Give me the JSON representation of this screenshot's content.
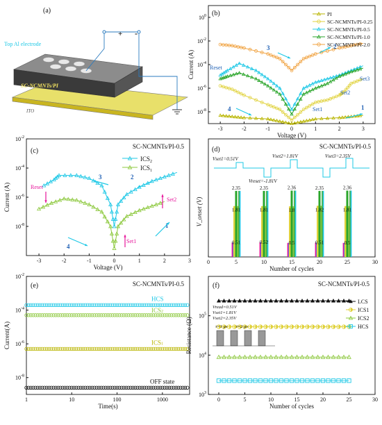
{
  "colors": {
    "cyan": "#1ec8e6",
    "lime": "#8cc83c",
    "yellow": "#e0d23c",
    "orange": "#f0a03c",
    "green": "#2aa52a",
    "olive": "#b9b500",
    "gray": "#8a8a8a",
    "magenta": "#e6149a",
    "blue": "#3c64e6",
    "red": "#e61e1e",
    "black": "#111111",
    "purple": "#8a2be2"
  },
  "panel_a": {
    "label": "(a)",
    "top_electrode": "Top Al electrode",
    "plus": "+",
    "minus": "-",
    "film": "SC-NCMNTs/PI",
    "substrate": "ITO"
  },
  "chart_data": [
    {
      "id": "b",
      "type": "line",
      "label": "(b)",
      "xlabel": "Voltage (V)",
      "ylabel": "Current (A)",
      "xlim": [
        -3.5,
        3.5
      ],
      "ylim_log": [
        -9,
        1
      ],
      "xticks": [
        "-3",
        "-2",
        "-1",
        "0",
        "1",
        "2",
        "3"
      ],
      "yticks": [
        "10^-8",
        "10^-6",
        "10^-4",
        "10^-2",
        "10^0"
      ],
      "legend": [
        "PI",
        "SC-NCMNTs/PI-0.25",
        "SC-NCMNTs/PI-0.5",
        "SC-NCMNTs/PI-1.0",
        "SC-NCMNTs/PI-2.0"
      ],
      "annotations": {
        "n1": "1",
        "n2": "2",
        "n3": "3",
        "n4": "4",
        "reset": "Reset",
        "set1": "Set1",
        "set2": "Set2",
        "set3": "Set3"
      },
      "series": [
        {
          "name": "PI",
          "color": "olive",
          "points": [
            [
              -3,
              -8.3
            ],
            [
              -2.5,
              -8.4
            ],
            [
              -2,
              -8.5
            ],
            [
              -1,
              -8.6
            ],
            [
              -0.5,
              -8.8
            ],
            [
              0,
              -9
            ],
            [
              0.5,
              -8.8
            ],
            [
              1,
              -8.6
            ],
            [
              2,
              -8.5
            ],
            [
              2.5,
              -8.4
            ],
            [
              3,
              -8.3
            ]
          ]
        },
        {
          "name": "SC-NCMNTs/PI-0.25",
          "color": "yellow",
          "points": [
            [
              -3,
              -5.8
            ],
            [
              -2.5,
              -6.1
            ],
            [
              -2,
              -6.6
            ],
            [
              -1,
              -7.4
            ],
            [
              -0.5,
              -7.8
            ],
            [
              0,
              -8.7
            ],
            [
              0.5,
              -7.8
            ],
            [
              1,
              -7.2
            ],
            [
              1.5,
              -7
            ],
            [
              2,
              -6.6
            ],
            [
              2.2,
              -6.3
            ],
            [
              2.5,
              -5.6
            ],
            [
              3,
              -5.2
            ]
          ]
        },
        {
          "name": "SC-NCMNTs/PI-0.5",
          "color": "cyan",
          "points": [
            [
              -3,
              -4.9
            ],
            [
              -2.7,
              -4.5
            ],
            [
              -2.2,
              -3.9
            ],
            [
              -1.5,
              -4.5
            ],
            [
              -1,
              -5.2
            ],
            [
              -0.5,
              -6
            ],
            [
              0,
              -7.8
            ],
            [
              0.5,
              -6
            ],
            [
              1,
              -5.5
            ],
            [
              1.5,
              -5.2
            ],
            [
              2,
              -4.9
            ],
            [
              2.5,
              -4.5
            ],
            [
              3,
              -4.1
            ]
          ]
        },
        {
          "name": "SC-NCMNTs/PI-1.0",
          "color": "green",
          "points": [
            [
              -3,
              -5.2
            ],
            [
              -2.7,
              -5
            ],
            [
              -2.2,
              -4.7
            ],
            [
              -1.5,
              -5.2
            ],
            [
              -1,
              -5.8
            ],
            [
              -0.5,
              -6.5
            ],
            [
              0,
              -8.2
            ],
            [
              0.5,
              -6.5
            ],
            [
              1,
              -6
            ],
            [
              1.5,
              -5.6
            ],
            [
              2,
              -5
            ],
            [
              2.5,
              -4.6
            ],
            [
              3,
              -4.3
            ]
          ]
        },
        {
          "name": "SC-NCMNTs/PI-2.0",
          "color": "orange",
          "points": [
            [
              -3,
              -2.3
            ],
            [
              -2.5,
              -2.4
            ],
            [
              -2,
              -2.6
            ],
            [
              -1,
              -3.1
            ],
            [
              -0.5,
              -3.5
            ],
            [
              0,
              -4.5
            ],
            [
              0.5,
              -3.5
            ],
            [
              1,
              -3.1
            ],
            [
              2,
              -2.6
            ],
            [
              2.5,
              -2.4
            ],
            [
              3,
              -2.2
            ]
          ]
        }
      ]
    },
    {
      "id": "c",
      "type": "line",
      "label": "(c)",
      "title": "SC-NCMNTs/PI-0.5",
      "xlabel": "Voltage (V)",
      "ylabel": "Current (A)",
      "xlim": [
        -3.5,
        3
      ],
      "ylim_log": [
        -10,
        -2
      ],
      "xticks": [
        "-3",
        "-2",
        "-1",
        "0",
        "1",
        "2",
        "3"
      ],
      "yticks": [
        "10^-8",
        "10^-6",
        "10^-4",
        "10^-2"
      ],
      "legend": [
        "ICS2",
        "ICS1"
      ],
      "annotations": {
        "n1": "1",
        "n2": "2",
        "n3": "3",
        "n4": "4",
        "reset": "Reset",
        "set1": "Set1",
        "set2": "Set2"
      },
      "series": [
        {
          "name": "ICS2",
          "color": "cyan",
          "points": [
            [
              -2.8,
              -5.2
            ],
            [
              -2.4,
              -4.8
            ],
            [
              -2.2,
              -4.5
            ],
            [
              -1.5,
              -4.5
            ],
            [
              -1,
              -4.7
            ],
            [
              -0.5,
              -5.2
            ],
            [
              -0.15,
              -6.5
            ],
            [
              0,
              -8
            ],
            [
              0.15,
              -6.5
            ],
            [
              0.5,
              -5.8
            ],
            [
              1,
              -5.3
            ],
            [
              1.5,
              -4.9
            ],
            [
              2,
              -4.6
            ],
            [
              2.5,
              -4.3
            ]
          ]
        },
        {
          "name": "ICS1",
          "color": "lime",
          "points": [
            [
              -3,
              -6.8
            ],
            [
              -2.5,
              -6.4
            ],
            [
              -2,
              -6.1
            ],
            [
              -1.5,
              -6.2
            ],
            [
              -1,
              -6.5
            ],
            [
              -0.5,
              -7
            ],
            [
              -0.15,
              -8
            ],
            [
              0,
              -9.5
            ],
            [
              0.15,
              -8
            ],
            [
              0.5,
              -7.3
            ],
            [
              1,
              -6.9
            ],
            [
              1.5,
              -6.6
            ],
            [
              2,
              -6.3
            ]
          ]
        }
      ]
    },
    {
      "id": "d",
      "type": "bar",
      "label": "(d)",
      "title": "SC-NCMNTs/PI-0.5",
      "xlabel": "Number of cycles",
      "ylabel": "V_onset (V)",
      "xlim": [
        0,
        30
      ],
      "xticks": [
        "0",
        "5",
        "10",
        "15",
        "20",
        "25",
        "30"
      ],
      "labels": {
        "vset1": "Vset1=0.51V",
        "vset2": "Vset2=1.81V",
        "vset3": "Vset3=2.35V",
        "vreset": "Vreset=-1.81V"
      },
      "groups": [
        {
          "cycle": 5,
          "set1": "0.51",
          "set2": "1.81",
          "set3": "2.35"
        },
        {
          "cycle": 10,
          "set1": "0.52",
          "set2": "1.81",
          "set3": "2.35"
        },
        {
          "cycle": 15,
          "set1": "0.5",
          "set2": "1.8",
          "set3": "2.36"
        },
        {
          "cycle": 20,
          "set1": "0.51",
          "set2": "1.82",
          "set3": "2.35"
        },
        {
          "cycle": 25,
          "set1": "0.5",
          "set2": "1.81",
          "set3": "2.36"
        }
      ]
    },
    {
      "id": "e",
      "type": "scatter",
      "label": "(e)",
      "title": "SC-NCMNTs/PI-0.5",
      "xlabel": "Time(s)",
      "ylabel": "Current(A)",
      "xlim_log": [
        0,
        3.6
      ],
      "ylim_log": [
        -9,
        -2
      ],
      "xticks": [
        "1",
        "10",
        "100",
        "1000"
      ],
      "yticks": [
        "10^-8",
        "10^-6",
        "10^-4",
        "10^-2"
      ],
      "series": [
        {
          "name": "HCS",
          "color": "cyan",
          "log_current": -3.7
        },
        {
          "name": "ICS2",
          "color": "lime",
          "log_current": -4.3
        },
        {
          "name": "ICS1",
          "color": "olive",
          "log_current": -6.3
        },
        {
          "name": "OFF state",
          "color": "black",
          "log_current": -8.6
        }
      ],
      "labels": {
        "hcs": "HCS",
        "ics2": "ICS2",
        "ics1": "ICS1",
        "off": "OFF state"
      }
    },
    {
      "id": "f",
      "type": "scatter",
      "label": "(f)",
      "title": "SC-NCMNTs/PI-0.5",
      "xlabel": "Number of cycles",
      "ylabel": "Resistance (Ω)",
      "xlim": [
        -2,
        30
      ],
      "ylim_log": [
        3,
        6
      ],
      "xticks": [
        "0",
        "5",
        "10",
        "15",
        "20",
        "25",
        "30"
      ],
      "yticks": [
        "10^3",
        "10^4",
        "10^5"
      ],
      "legend": [
        "LCS",
        "ICS1",
        "ICS2",
        "HCS"
      ],
      "inset": {
        "vread": "Vread=0.51V",
        "vset1": "Vset1=1.81V",
        "vset2": "Vset2=2.35V",
        "tau": "τ=1 μs",
        "t": "t=2 μs"
      },
      "series": [
        {
          "name": "LCS",
          "color": "black",
          "log_r": 5.38
        },
        {
          "name": "ICS1",
          "color": "yellow",
          "log_r": 4.72
        },
        {
          "name": "ICS2",
          "color": "lime",
          "log_r": 3.95
        },
        {
          "name": "HCS",
          "color": "cyan",
          "log_r": 3.35
        }
      ]
    }
  ]
}
